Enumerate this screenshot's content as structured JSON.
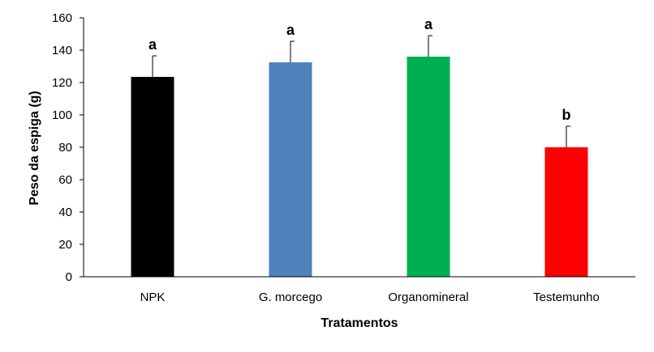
{
  "chart_data": {
    "type": "bar",
    "title": "",
    "xlabel": "Tratamentos",
    "ylabel": "Peso  da espiga (g)",
    "ylim": [
      0,
      160
    ],
    "yticks": [
      0,
      20,
      40,
      60,
      80,
      100,
      120,
      140,
      160
    ],
    "ytick_labels": [
      "0",
      "20",
      "40",
      "60",
      "80",
      "100",
      "120",
      "140",
      "160"
    ],
    "grid": false,
    "legend": "none",
    "categories": [
      "NPK",
      "G. morcego",
      "Organomineral",
      "Testemunho"
    ],
    "values": [
      123.5,
      132.5,
      136,
      80
    ],
    "errors": [
      13,
      13,
      13,
      13
    ],
    "significance_letters": [
      "a",
      "a",
      "a",
      "b"
    ],
    "colors": [
      "#000000",
      "#4f81bd",
      "#00b050",
      "#ff0000"
    ]
  }
}
